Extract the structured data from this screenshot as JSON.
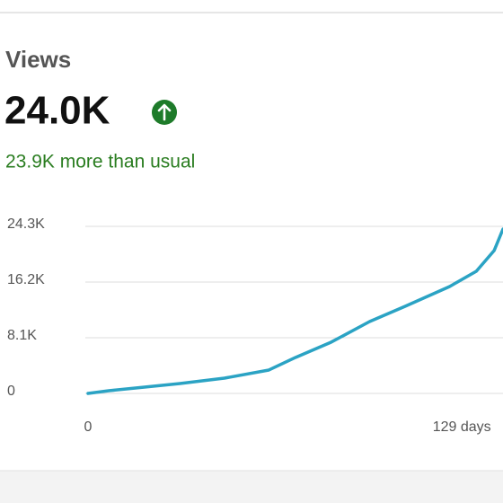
{
  "header": {
    "title": "Views",
    "value": "24.0K",
    "delta": "23.9K more than usual"
  },
  "chart_data": {
    "type": "line",
    "x": [
      0,
      7,
      16,
      31,
      46,
      61,
      70,
      82,
      95,
      107,
      122,
      131,
      137,
      140
    ],
    "series": [
      {
        "color": "#2ba3c4",
        "values": [
          0,
          390,
          780,
          1440,
          2220,
          3400,
          5230,
          7450,
          10450,
          12670,
          15550,
          17770,
          20770,
          23900
        ]
      }
    ],
    "xlim": [
      0,
      140
    ],
    "xticks": [
      0,
      {
        "value": 129,
        "label": "129 days"
      }
    ],
    "ylim": [
      0,
      24300
    ],
    "yticks": [
      0,
      {
        "value": 8100,
        "label": "8.1K"
      },
      {
        "value": 16200,
        "label": "16.2K"
      },
      {
        "value": 24300,
        "label": "24.3K"
      }
    ],
    "grid": true
  }
}
